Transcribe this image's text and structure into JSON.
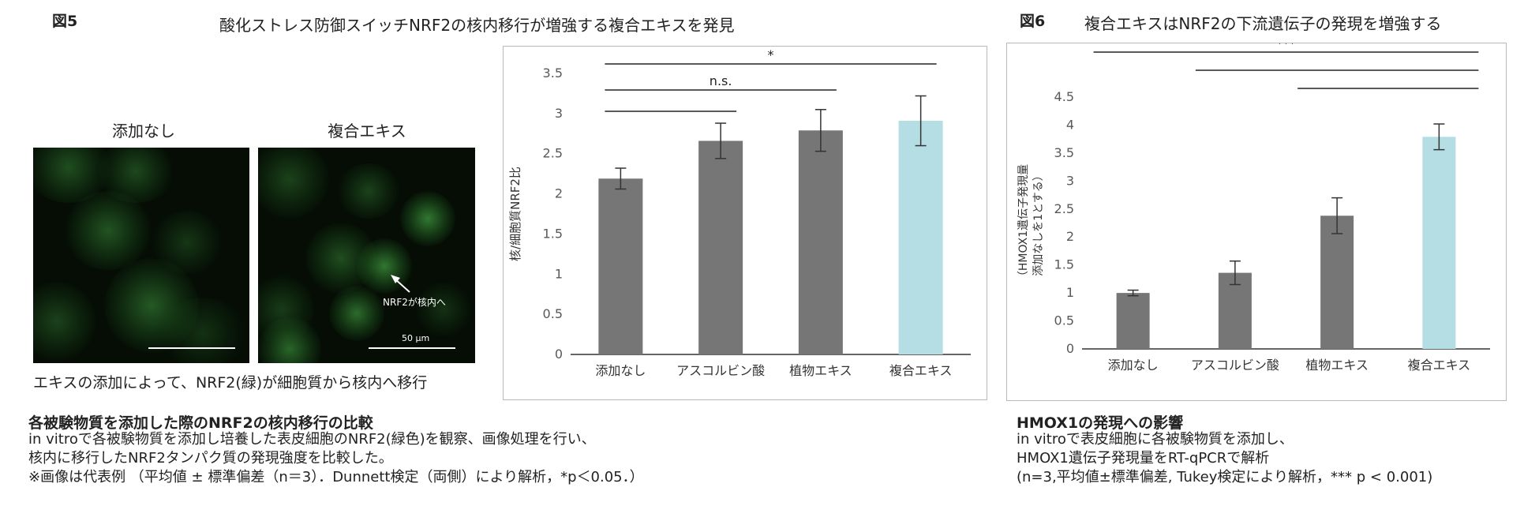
{
  "fig5": {
    "label": "図5",
    "title": "酸化ストレス防御スイッチNRF2の核内移行が増強する複合エキスを発見",
    "micro_left_title": "添加なし",
    "micro_right_title": "複合エキス",
    "arrow_label": "NRF2が核内へ",
    "scale_label": "50 μm",
    "micro_caption": "エキスの添加によって、NRF2(緑)が細胞質から核内へ移行",
    "caption_title": "各被験物質を添加した際のNRF2の核内移行の比較",
    "caption_lines": [
      "in vitroで各被験物質を添加し培養した表皮細胞のNRF2(緑色)を観察、画像処理を行い、",
      "核内に移行したNRF2タンパク質の発現強度を比較した。",
      "※画像は代表例 （平均値 ± 標準偏差（n＝3）．Dunnett検定（両側）により解析，*p＜0.05．）"
    ]
  },
  "fig6": {
    "label": "図6",
    "title": "複合エキスはNRF2の下流遺伝子の発現を増強する",
    "caption_title": "HMOX1の発現への影響",
    "caption_lines": [
      "in vitroで表皮細胞に各被験物質を添加し、",
      "HMOX1遺伝子発現量をRT-qPCRで解析",
      "(n=3,平均値±標準偏差, Tukey検定により解析，*** p < 0.001)"
    ]
  },
  "chart_data": [
    {
      "type": "bar",
      "categories": [
        "添加なし",
        "アスコルビン酸",
        "植物エキス",
        "複合エキス"
      ],
      "values": [
        2.19,
        2.66,
        2.79,
        2.91
      ],
      "errors": [
        0.13,
        0.22,
        0.26,
        0.31
      ],
      "colors": [
        "#767676",
        "#767676",
        "#767676",
        "#b4dde4"
      ],
      "ylabel": "核/細胞質NRF2比",
      "ylim": [
        0,
        3.5
      ],
      "yticks": [
        "0",
        "0.5",
        "1",
        "1.5",
        "2",
        "2.5",
        "3",
        "3.5"
      ],
      "grid": false,
      "significance": [
        {
          "from": 0,
          "to": 3,
          "label": "*"
        },
        {
          "from": 0,
          "to": 2,
          "label": "n.s."
        },
        {
          "from": 0,
          "to": 1,
          "label": ""
        }
      ]
    },
    {
      "type": "bar",
      "categories": [
        "添加なし",
        "アスコルビン酸",
        "植物エキス",
        "複合エキス"
      ],
      "values": [
        1.0,
        1.36,
        2.38,
        3.79
      ],
      "errors": [
        0.05,
        0.21,
        0.32,
        0.23
      ],
      "colors": [
        "#767676",
        "#767676",
        "#767676",
        "#b4dde4"
      ],
      "ylabel_lines": [
        "（HMOX1遺伝子発現量",
        "添加なしを1とする）"
      ],
      "ylim": [
        0,
        4.5
      ],
      "yticks": [
        "0",
        "0.5",
        "1",
        "1.5",
        "2",
        "2.5",
        "3",
        "3.5",
        "4",
        "4.5"
      ],
      "grid": false,
      "significance": [
        {
          "from": 0,
          "to": 3,
          "label": "***"
        },
        {
          "from": 1,
          "to": 3,
          "label": ""
        },
        {
          "from": 2,
          "to": 3,
          "label": ""
        }
      ]
    }
  ]
}
